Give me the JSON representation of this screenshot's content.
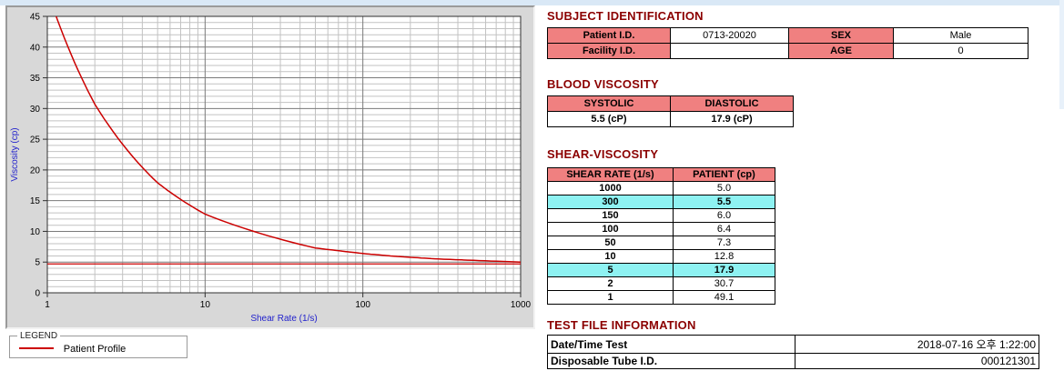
{
  "chart_data": {
    "type": "line",
    "xlabel": "Shear Rate (1/s)",
    "ylabel": "Viscosity (cp)",
    "x_scale": "log",
    "xlim": [
      1,
      1000
    ],
    "ylim": [
      0,
      45
    ],
    "x_ticks": [
      1,
      10,
      100,
      1000
    ],
    "y_ticks": [
      0,
      5,
      10,
      15,
      20,
      25,
      30,
      35,
      40,
      45
    ],
    "grid": true,
    "series": [
      {
        "name": "Patient Profile",
        "color": "#CC0000",
        "x": [
          1,
          2,
          5,
          10,
          50,
          100,
          150,
          300,
          1000
        ],
        "y": [
          49.1,
          30.7,
          17.9,
          12.8,
          7.3,
          6.4,
          6.0,
          5.5,
          5.0
        ]
      }
    ],
    "reference_line": {
      "y": 4.7,
      "color": "#CC0000"
    },
    "legend": {
      "title": "LEGEND",
      "position": "below-left",
      "entries": [
        "Patient Profile"
      ]
    }
  },
  "subject": {
    "title": "SUBJECT IDENTIFICATION",
    "rows": [
      {
        "label": "Patient I.D.",
        "value": "0713-20020",
        "label2": "SEX",
        "value2": "Male"
      },
      {
        "label": "Facility I.D.",
        "value": "",
        "label2": "AGE",
        "value2": "0"
      }
    ]
  },
  "blood_viscosity": {
    "title": "BLOOD VISCOSITY",
    "headers": [
      "SYSTOLIC",
      "DIASTOLIC"
    ],
    "values": [
      "5.5 (cP)",
      "17.9 (cP)"
    ]
  },
  "shear_viscosity": {
    "title": "SHEAR-VISCOSITY",
    "headers": [
      "SHEAR RATE (1/s)",
      "PATIENT (cp)"
    ],
    "rows": [
      {
        "rate": "1000",
        "value": "5.0",
        "highlight": false
      },
      {
        "rate": "300",
        "value": "5.5",
        "highlight": true
      },
      {
        "rate": "150",
        "value": "6.0",
        "highlight": false
      },
      {
        "rate": "100",
        "value": "6.4",
        "highlight": false
      },
      {
        "rate": "50",
        "value": "7.3",
        "highlight": false
      },
      {
        "rate": "10",
        "value": "12.8",
        "highlight": false
      },
      {
        "rate": "5",
        "value": "17.9",
        "highlight": true
      },
      {
        "rate": "2",
        "value": "30.7",
        "highlight": false
      },
      {
        "rate": "1",
        "value": "49.1",
        "highlight": false
      }
    ]
  },
  "test_file": {
    "title": "TEST FILE INFORMATION",
    "rows": [
      {
        "label": "Date/Time Test",
        "value": "2018-07-16  오후 1:22:00"
      },
      {
        "label": "Disposable Tube I.D.",
        "value": "000121301"
      }
    ]
  },
  "colors": {
    "heading": "#8B0000",
    "table_header_bg": "#F08080",
    "highlight_row_bg": "#8EF2F2",
    "series_line": "#CC0000",
    "axis_title": "#2222CC"
  }
}
